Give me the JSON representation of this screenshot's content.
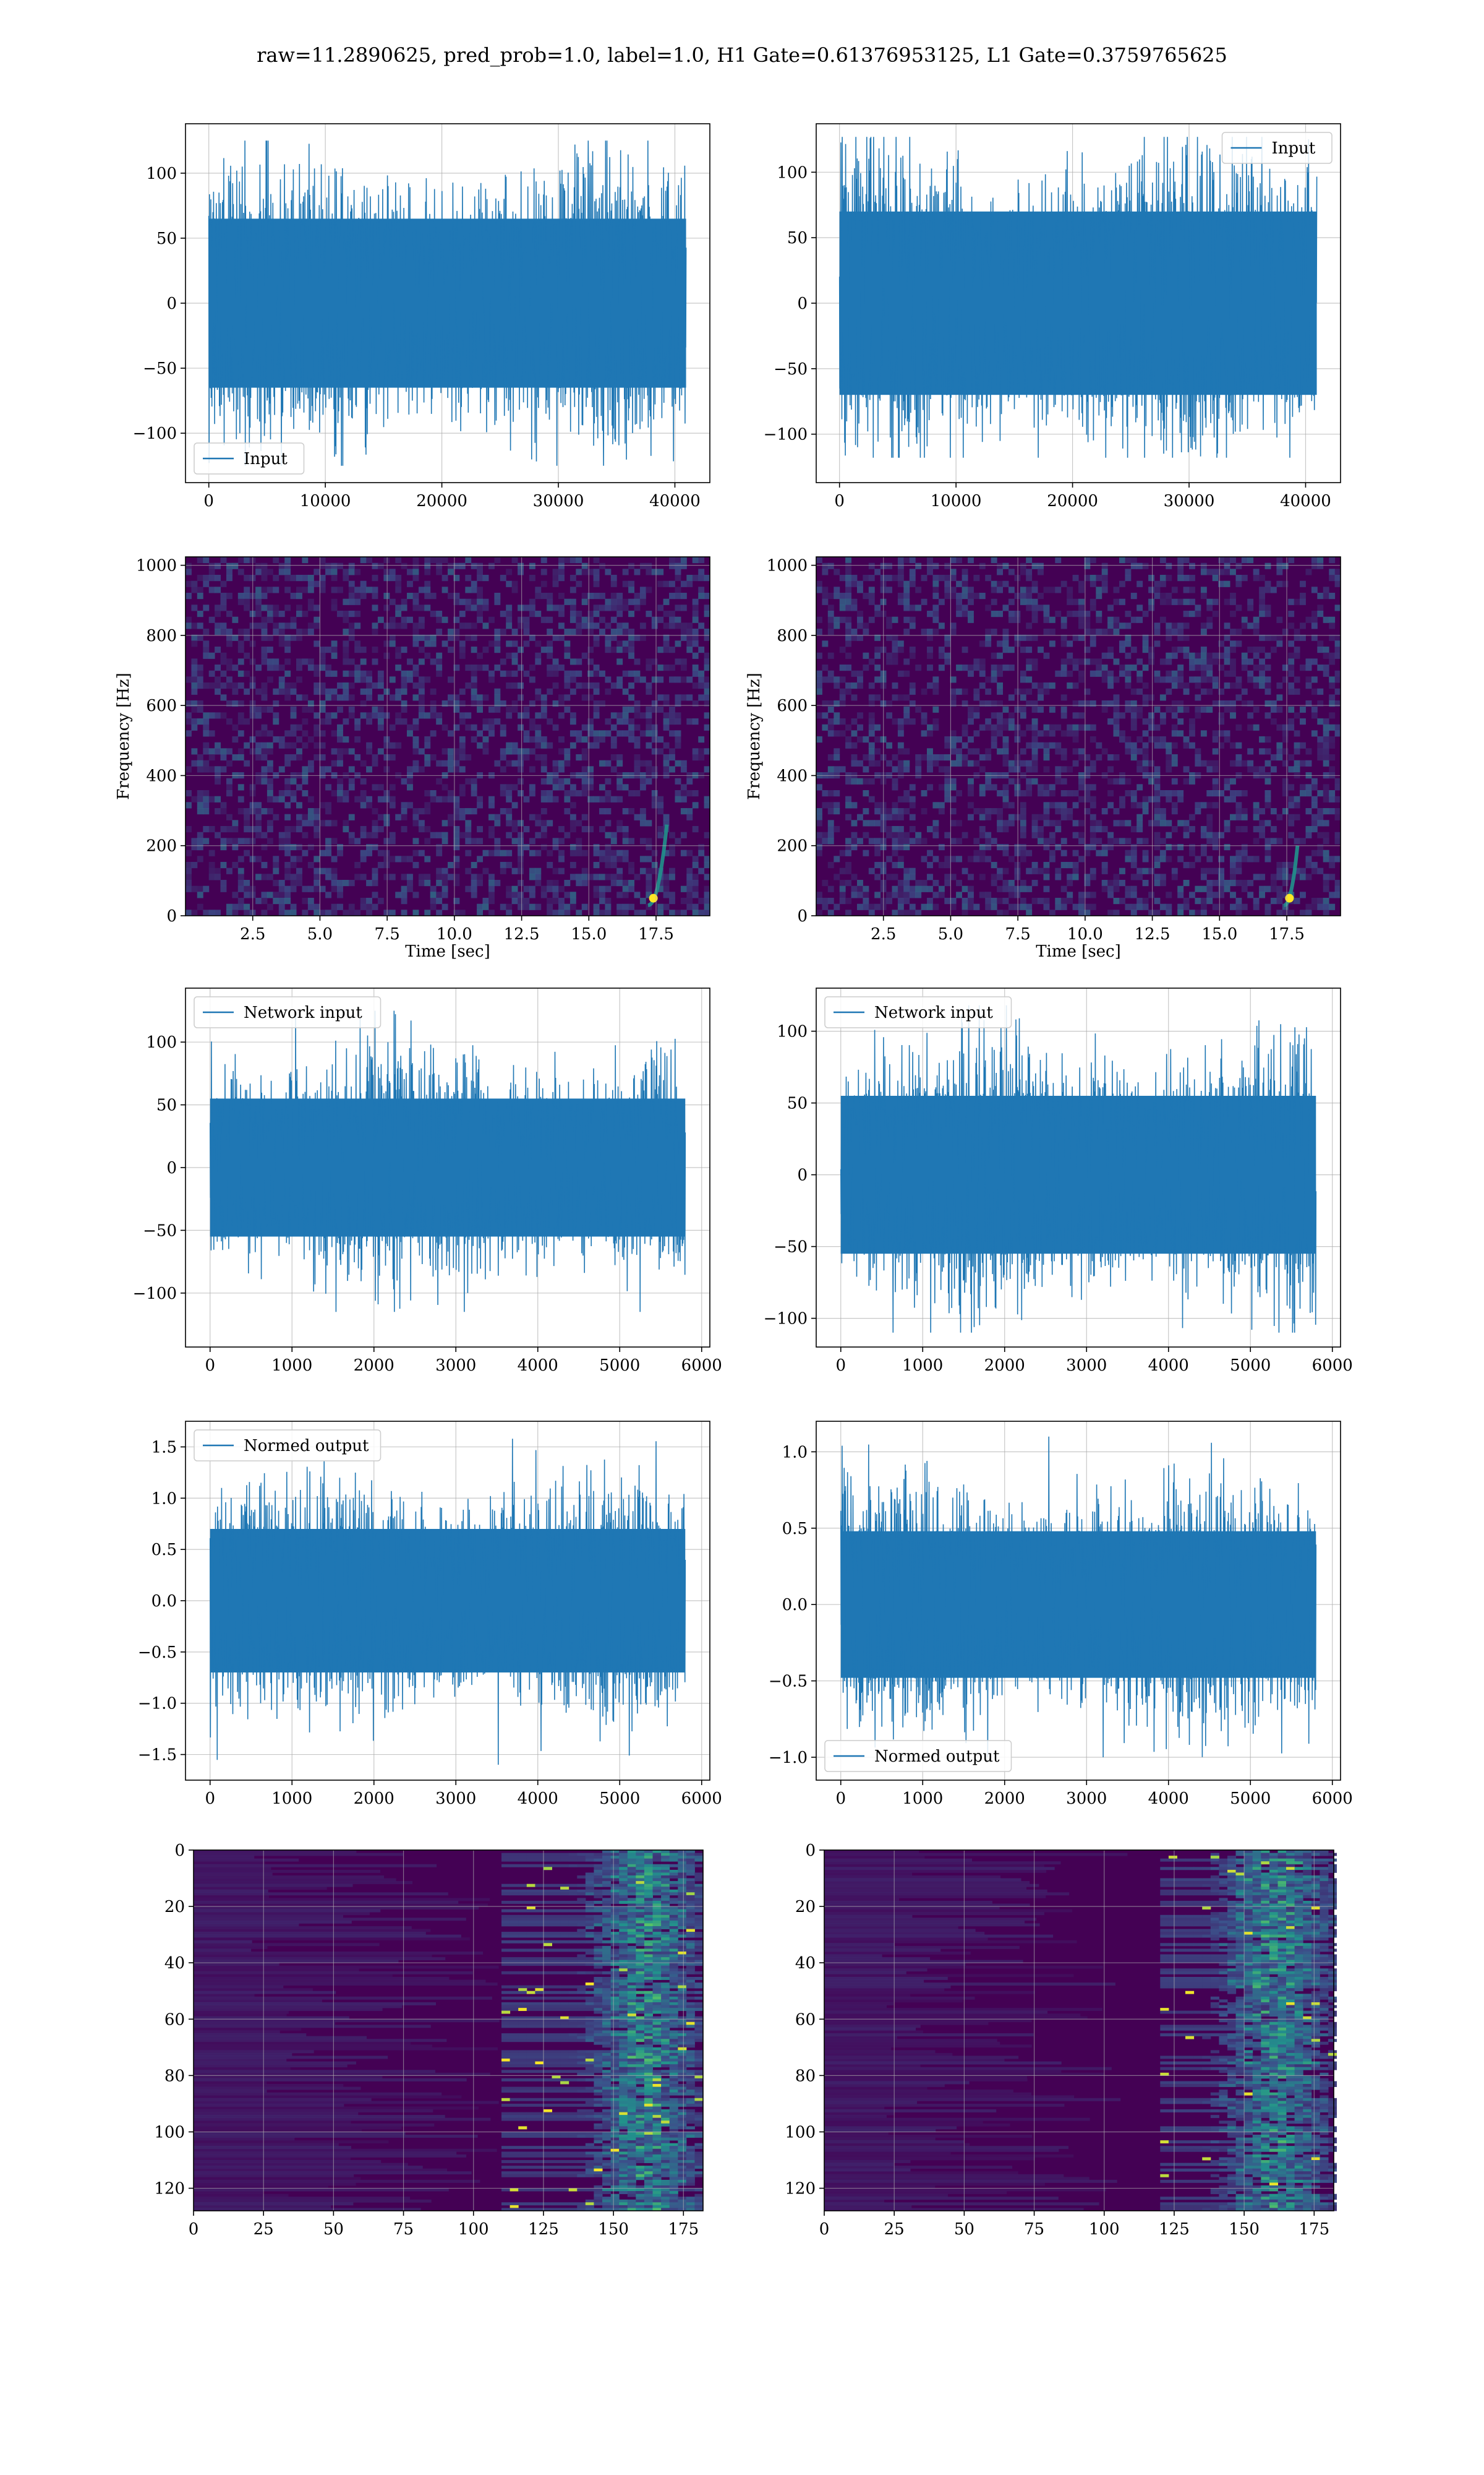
{
  "title": "raw=11.2890625, pred_prob=1.0, label=1.0, H1 Gate=0.61376953125, L1 Gate=0.3759765625",
  "colors": {
    "series": "#1f77b4",
    "grid": "#b0b0b0",
    "heat_low": "#440154",
    "heat_mid": "#21918c",
    "heat_high": "#fde725"
  },
  "chart_data": [
    {
      "panel": "row1-left",
      "type": "line",
      "series": [
        {
          "name": "Input",
          "amplitude": 65,
          "peak_max": 125,
          "peak_min": -125,
          "n_points": 40960
        }
      ],
      "xlim": [
        -2000,
        43000
      ],
      "ylim": [
        -138,
        138
      ],
      "xticks": [
        0,
        10000,
        20000,
        30000,
        40000
      ],
      "xtick_labels": [
        "0",
        "10000",
        "20000",
        "30000",
        "40000"
      ],
      "yticks": [
        -100,
        -50,
        0,
        50,
        100
      ],
      "ytick_labels": [
        "−100",
        "−50",
        "0",
        "50",
        "100"
      ],
      "legend": "lower-left",
      "xlabel": "",
      "ylabel": "",
      "grid": true
    },
    {
      "panel": "row1-right",
      "type": "line",
      "series": [
        {
          "name": "Input",
          "amplitude": 70,
          "peak_max": 127,
          "peak_min": -118,
          "n_points": 40960
        }
      ],
      "xlim": [
        -2000,
        43000
      ],
      "ylim": [
        -137,
        137
      ],
      "xticks": [
        0,
        10000,
        20000,
        30000,
        40000
      ],
      "xtick_labels": [
        "0",
        "10000",
        "20000",
        "30000",
        "40000"
      ],
      "yticks": [
        -100,
        -50,
        0,
        50,
        100
      ],
      "ytick_labels": [
        "−100",
        "−50",
        "0",
        "50",
        "100"
      ],
      "legend": "upper-right",
      "xlabel": "",
      "ylabel": "",
      "grid": true
    },
    {
      "panel": "row2-left",
      "type": "heatmap",
      "xlabel": "Time [sec]",
      "ylabel": "Frequency [Hz]",
      "xlim": [
        0,
        19.5
      ],
      "ylim": [
        0,
        1024
      ],
      "xticks": [
        2.5,
        5.0,
        7.5,
        10.0,
        12.5,
        15.0,
        17.5
      ],
      "xtick_labels": [
        "2.5",
        "5.0",
        "7.5",
        "10.0",
        "12.5",
        "15.0",
        "17.5"
      ],
      "yticks": [
        0,
        200,
        400,
        600,
        800,
        1000
      ],
      "ytick_labels": [
        "0",
        "200",
        "400",
        "600",
        "800",
        "1000"
      ],
      "chirp": {
        "t_start": 17.2,
        "t_end": 17.9,
        "f_start": 30,
        "f_end": 260
      },
      "colormap": "viridis",
      "grid": true
    },
    {
      "panel": "row2-right",
      "type": "heatmap",
      "xlabel": "Time [sec]",
      "ylabel": "Frequency [Hz]",
      "xlim": [
        0,
        19.5
      ],
      "ylim": [
        0,
        1024
      ],
      "xticks": [
        2.5,
        5.0,
        7.5,
        10.0,
        12.5,
        15.0,
        17.5
      ],
      "xtick_labels": [
        "2.5",
        "5.0",
        "7.5",
        "10.0",
        "12.5",
        "15.0",
        "17.5"
      ],
      "yticks": [
        0,
        200,
        400,
        600,
        800,
        1000
      ],
      "ytick_labels": [
        "0",
        "200",
        "400",
        "600",
        "800",
        "1000"
      ],
      "chirp": {
        "t_start": 17.4,
        "t_end": 17.9,
        "f_start": 30,
        "f_end": 200
      },
      "colormap": "viridis",
      "grid": true
    },
    {
      "panel": "row3-left",
      "type": "line",
      "series": [
        {
          "name": "Network input",
          "amplitude": 55,
          "peak_max": 125,
          "peak_min": -115,
          "n_points": 5800
        }
      ],
      "xlim": [
        -300,
        6100
      ],
      "ylim": [
        -143,
        143
      ],
      "xticks": [
        0,
        1000,
        2000,
        3000,
        4000,
        5000,
        6000
      ],
      "xtick_labels": [
        "0",
        "1000",
        "2000",
        "3000",
        "4000",
        "5000",
        "6000"
      ],
      "yticks": [
        -100,
        -50,
        0,
        50,
        100
      ],
      "ytick_labels": [
        "−100",
        "−50",
        "0",
        "50",
        "100"
      ],
      "legend": "upper-left",
      "xlabel": "",
      "ylabel": "",
      "grid": true
    },
    {
      "panel": "row3-right",
      "type": "line",
      "series": [
        {
          "name": "Network input",
          "amplitude": 55,
          "peak_max": 118,
          "peak_min": -110,
          "n_points": 5800
        }
      ],
      "xlim": [
        -300,
        6100
      ],
      "ylim": [
        -120,
        130
      ],
      "xticks": [
        0,
        1000,
        2000,
        3000,
        4000,
        5000,
        6000
      ],
      "xtick_labels": [
        "0",
        "1000",
        "2000",
        "3000",
        "4000",
        "5000",
        "6000"
      ],
      "yticks": [
        -100,
        -50,
        0,
        50,
        100
      ],
      "ytick_labels": [
        "−100",
        "−50",
        "0",
        "50",
        "100"
      ],
      "legend": "upper-left",
      "xlabel": "",
      "ylabel": "",
      "grid": true
    },
    {
      "panel": "row4-left",
      "type": "line",
      "series": [
        {
          "name": "Normed output",
          "amplitude": 0.7,
          "peak_max": 1.58,
          "peak_min": -1.6,
          "n_points": 5800
        }
      ],
      "xlim": [
        -300,
        6100
      ],
      "ylim": [
        -1.75,
        1.75
      ],
      "xticks": [
        0,
        1000,
        2000,
        3000,
        4000,
        5000,
        6000
      ],
      "xtick_labels": [
        "0",
        "1000",
        "2000",
        "3000",
        "4000",
        "5000",
        "6000"
      ],
      "yticks": [
        -1.5,
        -1.0,
        -0.5,
        0.0,
        0.5,
        1.0,
        1.5
      ],
      "ytick_labels": [
        "−1.5",
        "−1.0",
        "−0.5",
        "0.0",
        "0.5",
        "1.0",
        "1.5"
      ],
      "legend": "upper-left",
      "xlabel": "",
      "ylabel": "",
      "grid": true
    },
    {
      "panel": "row4-right",
      "type": "line",
      "series": [
        {
          "name": "Normed output",
          "amplitude": 0.48,
          "peak_max": 1.1,
          "peak_min": -1.0,
          "n_points": 5800
        }
      ],
      "xlim": [
        -300,
        6100
      ],
      "ylim": [
        -1.15,
        1.2
      ],
      "xticks": [
        0,
        1000,
        2000,
        3000,
        4000,
        5000,
        6000
      ],
      "xtick_labels": [
        "0",
        "1000",
        "2000",
        "3000",
        "4000",
        "5000",
        "6000"
      ],
      "yticks": [
        -1.0,
        -0.5,
        0.0,
        0.5,
        1.0
      ],
      "ytick_labels": [
        "−1.0",
        "−0.5",
        "0.0",
        "0.5",
        "1.0"
      ],
      "legend": "lower-left",
      "xlabel": "",
      "ylabel": "",
      "grid": true
    },
    {
      "panel": "row5-left",
      "type": "heatmap",
      "xlim": [
        0,
        182
      ],
      "ylim": [
        128,
        0
      ],
      "xticks": [
        0,
        25,
        50,
        75,
        100,
        125,
        150,
        175
      ],
      "xtick_labels": [
        "0",
        "25",
        "50",
        "75",
        "100",
        "125",
        "150",
        "175"
      ],
      "yticks": [
        0,
        20,
        40,
        60,
        80,
        100,
        120
      ],
      "ytick_labels": [
        "0",
        "20",
        "40",
        "60",
        "80",
        "100",
        "120"
      ],
      "activity_onset_col": 110,
      "peak_col": 160,
      "colormap": "viridis",
      "grid": true,
      "xlabel": "",
      "ylabel": ""
    },
    {
      "panel": "row5-right",
      "type": "heatmap",
      "xlim": [
        0,
        182
      ],
      "ylim": [
        128,
        0
      ],
      "xticks": [
        0,
        25,
        50,
        75,
        100,
        125,
        150,
        175
      ],
      "xtick_labels": [
        "0",
        "25",
        "50",
        "75",
        "100",
        "125",
        "150",
        "175"
      ],
      "yticks": [
        0,
        20,
        40,
        60,
        80,
        100,
        120
      ],
      "ytick_labels": [
        "0",
        "20",
        "40",
        "60",
        "80",
        "100",
        "120"
      ],
      "activity_onset_col": 120,
      "peak_col": 160,
      "colormap": "viridis",
      "grid": true,
      "xlabel": "",
      "ylabel": ""
    }
  ]
}
